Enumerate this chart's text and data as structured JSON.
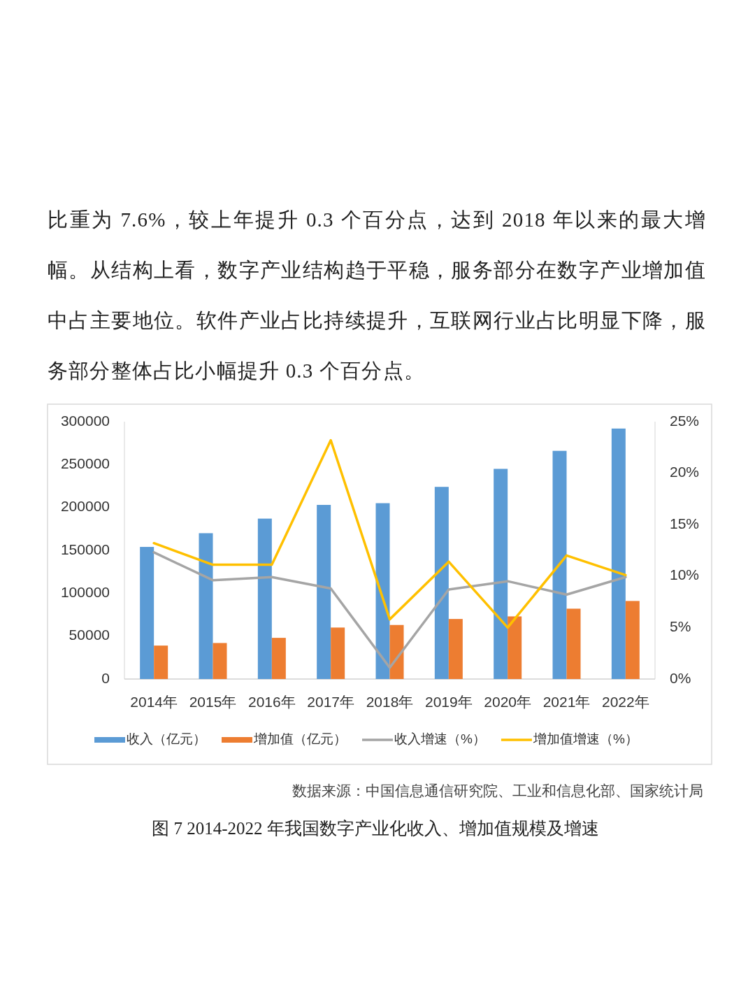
{
  "chart_data": {
    "type": "bar",
    "title": "图 7 2014-2022 年我国数字产业化收入、增加值规模及增速",
    "annotations": [
      "比重为 7.6%，较上年提升 0.3 个百分点，达到 2018 年以来的最大增幅。从结构上看，数字产业结构趋于平稳，服务部分在数字产业增加值中占主要地位。软件产业占比持续提升，互联网行业占比明显下降，服务部分整体占比小幅提升 0.3 个百分点。",
      "数据来源：中国信息通信研究院、工业和信息化部、国家统计局"
    ],
    "categories": [
      "2014年",
      "2015年",
      "2016年",
      "2017年",
      "2018年",
      "2019年",
      "2020年",
      "2021年",
      "2022年"
    ],
    "series": [
      {
        "name": "收入（亿元）",
        "color": "#5b9bd5",
        "values": [
          154000,
          170000,
          187000,
          203000,
          205000,
          224000,
          245000,
          266000,
          292000
        ]
      },
      {
        "name": "增加值（亿元）",
        "color": "#ed7d31",
        "values": [
          39000,
          42000,
          48000,
          60000,
          63000,
          70000,
          73000,
          82000,
          91000
        ]
      },
      {
        "name": "收入增速（%）",
        "type": "line",
        "axis": "y2",
        "color": "#a5a5a5",
        "values": [
          12.3,
          9.6,
          9.9,
          8.8,
          1.1,
          8.7,
          9.5,
          8.2,
          9.9
        ]
      },
      {
        "name": "增加值增速（%）",
        "type": "line",
        "axis": "y2",
        "color": "#ffc000",
        "values": [
          13.2,
          11.1,
          11.1,
          23.2,
          5.8,
          11.4,
          5.0,
          12.0,
          10.1
        ]
      }
    ],
    "ylim": [
      0,
      300000
    ],
    "yticks": [
      0,
      50000,
      100000,
      150000,
      200000,
      250000,
      300000
    ],
    "y2lim": [
      0,
      25
    ],
    "y2ticks": [
      {
        "value": 0,
        "label": "0%"
      },
      {
        "value": 5,
        "label": "5%"
      },
      {
        "value": 10,
        "label": "10%"
      },
      {
        "value": 15,
        "label": "15%"
      },
      {
        "value": 20,
        "label": "20%"
      },
      {
        "value": 25,
        "label": "25%"
      }
    ],
    "legend": "bottom",
    "grid": false
  }
}
